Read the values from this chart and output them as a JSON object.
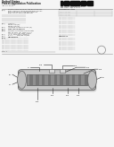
{
  "bg_color": "#f5f5f5",
  "text_color": "#444444",
  "dark_text": "#222222",
  "light_gray": "#bbbbbb",
  "mid_gray": "#999999",
  "dark_gray": "#666666",
  "very_dark": "#333333",
  "diagram_outer": "#c8c8c8",
  "diagram_body": "#b0b0b0",
  "diagram_inner": "#787878",
  "diagram_stripe": "#909090",
  "diagram_end": "#c0c0c0",
  "diagram_tab": "#d8d8d8",
  "barcode_color": "#111111"
}
